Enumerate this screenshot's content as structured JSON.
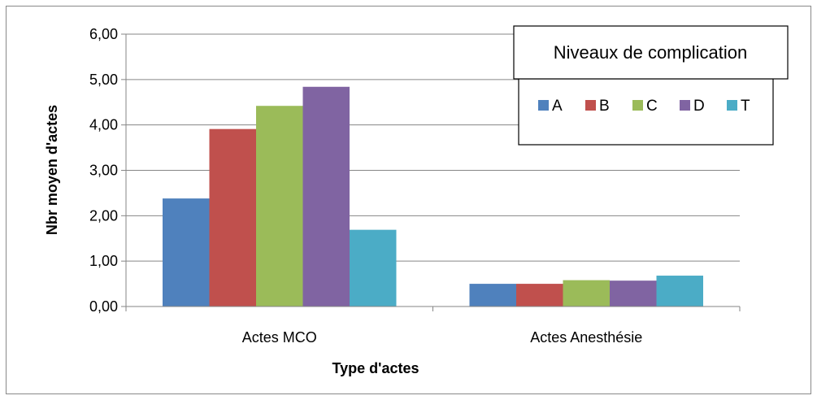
{
  "chart_data": {
    "type": "bar",
    "title": "",
    "xlabel": "Type d'actes",
    "ylabel": "Nbr moyen d'actes",
    "ylim": [
      0,
      6
    ],
    "y_tick_labels": [
      "0,00",
      "1,00",
      "2,00",
      "3,00",
      "4,00",
      "5,00",
      "6,00"
    ],
    "grid": true,
    "legend_position": "top-right",
    "legend_title": "Niveaux de complication",
    "categories": [
      "Actes MCO",
      "Actes Anesthésie"
    ],
    "series": [
      {
        "name": "A",
        "color": "#4f81bd",
        "values": [
          2.38,
          0.5
        ]
      },
      {
        "name": "B",
        "color": "#c0504d",
        "values": [
          3.91,
          0.5
        ]
      },
      {
        "name": "C",
        "color": "#9bbb59",
        "values": [
          4.42,
          0.58
        ]
      },
      {
        "name": "D",
        "color": "#8064a2",
        "values": [
          4.84,
          0.57
        ]
      },
      {
        "name": "T",
        "color": "#4bacc6",
        "values": [
          1.69,
          0.68
        ]
      }
    ]
  }
}
